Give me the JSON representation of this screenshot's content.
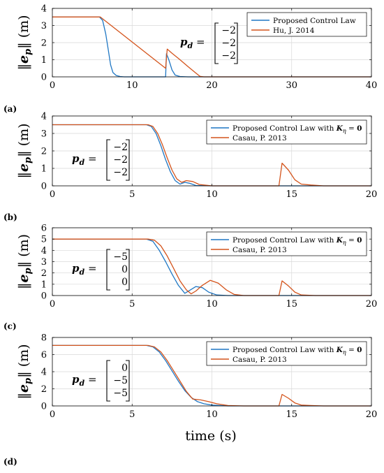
{
  "figure": {
    "xlabel": "time (s)",
    "ylabel": "‖e_p‖ (m)",
    "colors": {
      "series1": "#1f77c4",
      "series2": "#d4541c",
      "grid": "#d8d8d8"
    }
  },
  "chart_data": [
    {
      "panel_label": "(a)",
      "type": "line",
      "xlim": [
        0,
        40
      ],
      "ylim": [
        0,
        4
      ],
      "xticks": [
        0,
        10,
        20,
        30,
        40
      ],
      "yticks": [
        0,
        1,
        2,
        3,
        4
      ],
      "grid": true,
      "legend_position": "top-right",
      "annotation": {
        "prefix": "p_d =",
        "vector": [
          "−2",
          "−2",
          "−2"
        ],
        "position": "center-right"
      },
      "series": [
        {
          "name": "Proposed Control Law",
          "color": "#1f77c4",
          "points": [
            [
              0,
              3.5
            ],
            [
              5.9,
              3.5
            ],
            [
              6.3,
              3.3
            ],
            [
              6.7,
              2.5
            ],
            [
              7.0,
              1.6
            ],
            [
              7.3,
              0.7
            ],
            [
              7.6,
              0.25
            ],
            [
              8.0,
              0.08
            ],
            [
              8.5,
              0.02
            ],
            [
              9,
              0
            ],
            [
              14.2,
              0
            ],
            [
              14.3,
              1.35
            ],
            [
              14.6,
              1.0
            ],
            [
              15.0,
              0.4
            ],
            [
              15.4,
              0.1
            ],
            [
              16,
              0.02
            ],
            [
              17,
              0
            ],
            [
              40,
              0
            ]
          ]
        },
        {
          "name": "Hu, J. 2014",
          "color": "#d4541c",
          "points": [
            [
              0,
              3.5
            ],
            [
              6.0,
              3.5
            ],
            [
              14.2,
              0.5
            ],
            [
              14.4,
              1.62
            ],
            [
              15.0,
              1.38
            ],
            [
              16,
              1.0
            ],
            [
              17,
              0.6
            ],
            [
              18,
              0.22
            ],
            [
              18.5,
              0.03
            ],
            [
              19,
              0
            ],
            [
              40,
              0
            ]
          ]
        }
      ]
    },
    {
      "panel_label": "(b)",
      "type": "line",
      "xlim": [
        0,
        20
      ],
      "ylim": [
        0,
        4
      ],
      "xticks": [
        0,
        5,
        10,
        15,
        20
      ],
      "yticks": [
        0,
        1,
        2,
        3,
        4
      ],
      "grid": true,
      "legend_position": "top-right",
      "annotation": {
        "prefix": "p_d =",
        "vector": [
          "−2",
          "−2",
          "−2"
        ],
        "position": "left"
      },
      "series": [
        {
          "name": "Proposed Control Law with K_η = 0",
          "color": "#1f77c4",
          "points": [
            [
              0,
              3.5
            ],
            [
              5.9,
              3.5
            ],
            [
              6.2,
              3.4
            ],
            [
              6.5,
              3.0
            ],
            [
              6.8,
              2.3
            ],
            [
              7.1,
              1.5
            ],
            [
              7.4,
              0.8
            ],
            [
              7.7,
              0.3
            ],
            [
              8.0,
              0.1
            ],
            [
              8.3,
              0.2
            ],
            [
              8.6,
              0.15
            ],
            [
              9.0,
              0.02
            ],
            [
              10,
              0
            ],
            [
              20,
              0
            ]
          ]
        },
        {
          "name": "Casau, P. 2013",
          "color": "#d4541c",
          "points": [
            [
              0,
              3.5
            ],
            [
              6.0,
              3.5
            ],
            [
              6.3,
              3.4
            ],
            [
              6.6,
              3.0
            ],
            [
              6.9,
              2.35
            ],
            [
              7.2,
              1.6
            ],
            [
              7.5,
              0.9
            ],
            [
              7.8,
              0.4
            ],
            [
              8.1,
              0.2
            ],
            [
              8.4,
              0.3
            ],
            [
              8.8,
              0.25
            ],
            [
              9.2,
              0.08
            ],
            [
              10,
              0
            ],
            [
              14.2,
              0
            ],
            [
              14.4,
              1.3
            ],
            [
              14.8,
              0.9
            ],
            [
              15.2,
              0.35
            ],
            [
              15.6,
              0.1
            ],
            [
              16.2,
              0.05
            ],
            [
              17,
              0
            ],
            [
              20,
              0
            ]
          ]
        }
      ]
    },
    {
      "panel_label": "(c)",
      "type": "line",
      "xlim": [
        0,
        20
      ],
      "ylim": [
        0,
        6
      ],
      "xticks": [
        0,
        5,
        10,
        15,
        20
      ],
      "yticks": [
        0,
        1,
        2,
        3,
        4,
        5,
        6
      ],
      "grid": true,
      "legend_position": "top-right",
      "annotation": {
        "prefix": "p_d =",
        "vector": [
          "−5",
          "0",
          "0"
        ],
        "position": "left"
      },
      "series": [
        {
          "name": "Proposed Control Law with K_η = 0",
          "color": "#1f77c4",
          "points": [
            [
              0,
              5
            ],
            [
              5.9,
              5
            ],
            [
              6.3,
              4.8
            ],
            [
              6.7,
              4.0
            ],
            [
              7.1,
              3.0
            ],
            [
              7.5,
              1.9
            ],
            [
              7.9,
              0.9
            ],
            [
              8.3,
              0.2
            ],
            [
              8.6,
              0.45
            ],
            [
              9.0,
              0.8
            ],
            [
              9.4,
              0.7
            ],
            [
              9.8,
              0.3
            ],
            [
              10.3,
              0.05
            ],
            [
              11,
              0
            ],
            [
              20,
              0
            ]
          ]
        },
        {
          "name": "Casau, P. 2013",
          "color": "#d4541c",
          "points": [
            [
              0,
              5
            ],
            [
              6.0,
              5
            ],
            [
              6.4,
              4.9
            ],
            [
              6.8,
              4.4
            ],
            [
              7.2,
              3.5
            ],
            [
              7.6,
              2.4
            ],
            [
              8.0,
              1.3
            ],
            [
              8.4,
              0.5
            ],
            [
              8.7,
              0.15
            ],
            [
              9.0,
              0.4
            ],
            [
              9.4,
              0.9
            ],
            [
              9.9,
              1.35
            ],
            [
              10.4,
              1.1
            ],
            [
              10.9,
              0.5
            ],
            [
              11.4,
              0.1
            ],
            [
              12,
              0
            ],
            [
              14.2,
              0
            ],
            [
              14.4,
              1.3
            ],
            [
              14.8,
              0.85
            ],
            [
              15.2,
              0.3
            ],
            [
              15.6,
              0.05
            ],
            [
              16.5,
              0
            ],
            [
              20,
              0
            ]
          ]
        }
      ]
    },
    {
      "panel_label": "(d)",
      "type": "line",
      "xlim": [
        0,
        20
      ],
      "ylim": [
        0,
        8
      ],
      "xticks": [
        0,
        5,
        10,
        15,
        20
      ],
      "yticks": [
        0,
        2,
        4,
        6,
        8
      ],
      "grid": true,
      "legend_position": "top-right",
      "annotation": {
        "prefix": "p_d =",
        "vector": [
          "0",
          "−5",
          "−5"
        ],
        "position": "left"
      },
      "series": [
        {
          "name": "Proposed Control Law with K_η = 0",
          "color": "#1f77c4",
          "points": [
            [
              0,
              7.07
            ],
            [
              5.9,
              7.07
            ],
            [
              6.3,
              6.9
            ],
            [
              6.7,
              6.3
            ],
            [
              7.1,
              5.3
            ],
            [
              7.5,
              4.1
            ],
            [
              7.9,
              2.9
            ],
            [
              8.3,
              1.8
            ],
            [
              8.7,
              1.0
            ],
            [
              9.1,
              0.5
            ],
            [
              9.5,
              0.25
            ],
            [
              10,
              0.1
            ],
            [
              11,
              0
            ],
            [
              20,
              0
            ]
          ]
        },
        {
          "name": "Casau, P. 2013",
          "color": "#d4541c",
          "points": [
            [
              0,
              7.07
            ],
            [
              6.0,
              7.07
            ],
            [
              6.4,
              6.9
            ],
            [
              6.8,
              6.3
            ],
            [
              7.2,
              5.3
            ],
            [
              7.6,
              4.1
            ],
            [
              8.0,
              2.9
            ],
            [
              8.4,
              1.7
            ],
            [
              8.8,
              0.8
            ],
            [
              9.3,
              0.7
            ],
            [
              9.8,
              0.5
            ],
            [
              10.3,
              0.25
            ],
            [
              11,
              0.05
            ],
            [
              12,
              0
            ],
            [
              14.2,
              0
            ],
            [
              14.4,
              1.35
            ],
            [
              14.8,
              0.9
            ],
            [
              15.2,
              0.35
            ],
            [
              15.6,
              0.1
            ],
            [
              16.2,
              0.05
            ],
            [
              17,
              0
            ],
            [
              20,
              0
            ]
          ]
        }
      ]
    }
  ]
}
